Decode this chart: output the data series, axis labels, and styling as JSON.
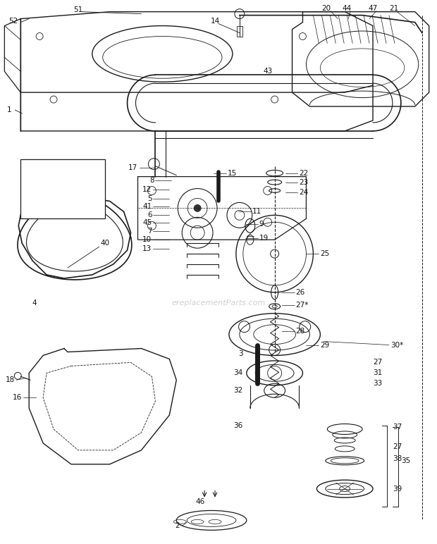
{
  "bg_color": "#ffffff",
  "line_color": "#1a1a1a",
  "text_color": "#111111",
  "watermark": "ereplacementParts.com",
  "figsize": [
    6.2,
    7.72
  ],
  "dpi": 100
}
